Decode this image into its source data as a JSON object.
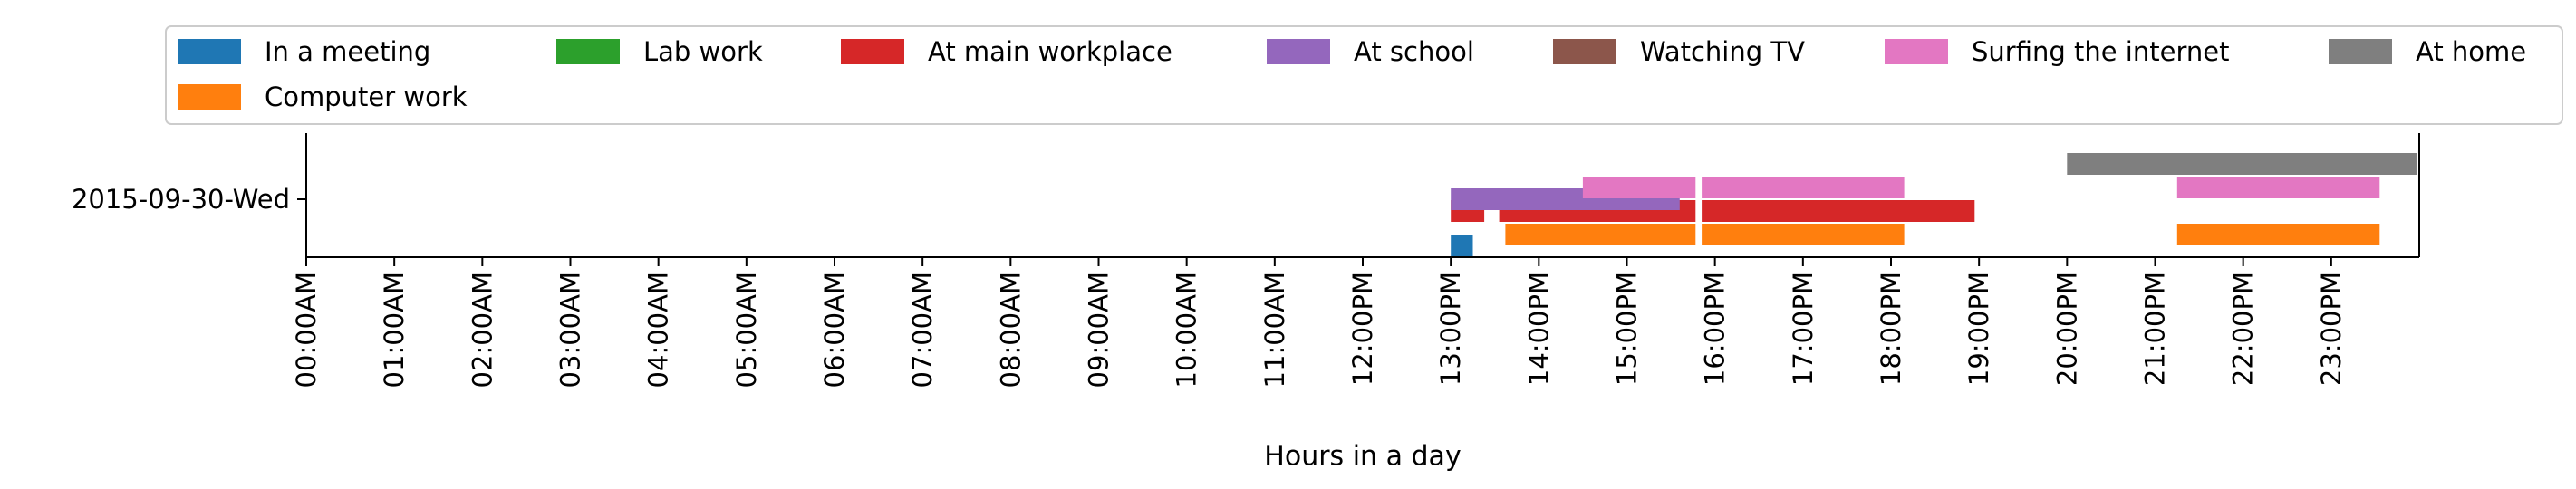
{
  "chart_data": {
    "type": "timeline",
    "title": "",
    "xlabel": "Hours in a day",
    "ylabel": "",
    "xlim": [
      0,
      24
    ],
    "row_label": "2015-09-30-Wed",
    "x_ticks": [
      "00:00AM",
      "01:00AM",
      "02:00AM",
      "03:00AM",
      "04:00AM",
      "05:00AM",
      "06:00AM",
      "07:00AM",
      "08:00AM",
      "09:00AM",
      "10:00AM",
      "11:00AM",
      "12:00PM",
      "13:00PM",
      "14:00PM",
      "15:00PM",
      "16:00PM",
      "17:00PM",
      "18:00PM",
      "19:00PM",
      "20:00PM",
      "21:00PM",
      "22:00PM",
      "23:00PM"
    ],
    "legend_position": "top (above plot), 7 columns",
    "series": [
      {
        "name": "In a meeting",
        "color": "#1f77b4",
        "lane": 0,
        "intervals": [
          [
            13.0,
            13.25
          ]
        ]
      },
      {
        "name": "Computer work",
        "color": "#ff7f0e",
        "lane": 1,
        "intervals": [
          [
            13.62,
            15.78
          ],
          [
            15.85,
            18.15
          ],
          [
            21.25,
            23.55
          ]
        ]
      },
      {
        "name": "Lab work",
        "color": "#2ca02c",
        "lane": 2,
        "intervals": []
      },
      {
        "name": "At main workplace",
        "color": "#d62728",
        "lane": 3,
        "intervals": [
          [
            13.0,
            13.38
          ],
          [
            13.55,
            15.78
          ],
          [
            15.85,
            18.95
          ]
        ]
      },
      {
        "name": "At school",
        "color": "#9467bd",
        "lane": 4,
        "intervals": [
          [
            13.0,
            15.6
          ]
        ]
      },
      {
        "name": "Surfing the internet",
        "color": "#e377c2",
        "lane": 5,
        "intervals": [
          [
            14.5,
            15.78
          ],
          [
            15.85,
            18.15
          ],
          [
            21.25,
            23.55
          ]
        ]
      },
      {
        "name": "Watching TV",
        "color": "#8c564b",
        "lane": 6,
        "intervals": []
      },
      {
        "name": "At home",
        "color": "#7f7f7f",
        "lane": 7,
        "intervals": [
          [
            20.0,
            23.98
          ]
        ]
      }
    ],
    "legend_order": [
      "In a meeting",
      "Lab work",
      "At main workplace",
      "At school",
      "Watching TV",
      "Surfing the internet",
      "At home",
      "Computer work"
    ]
  }
}
